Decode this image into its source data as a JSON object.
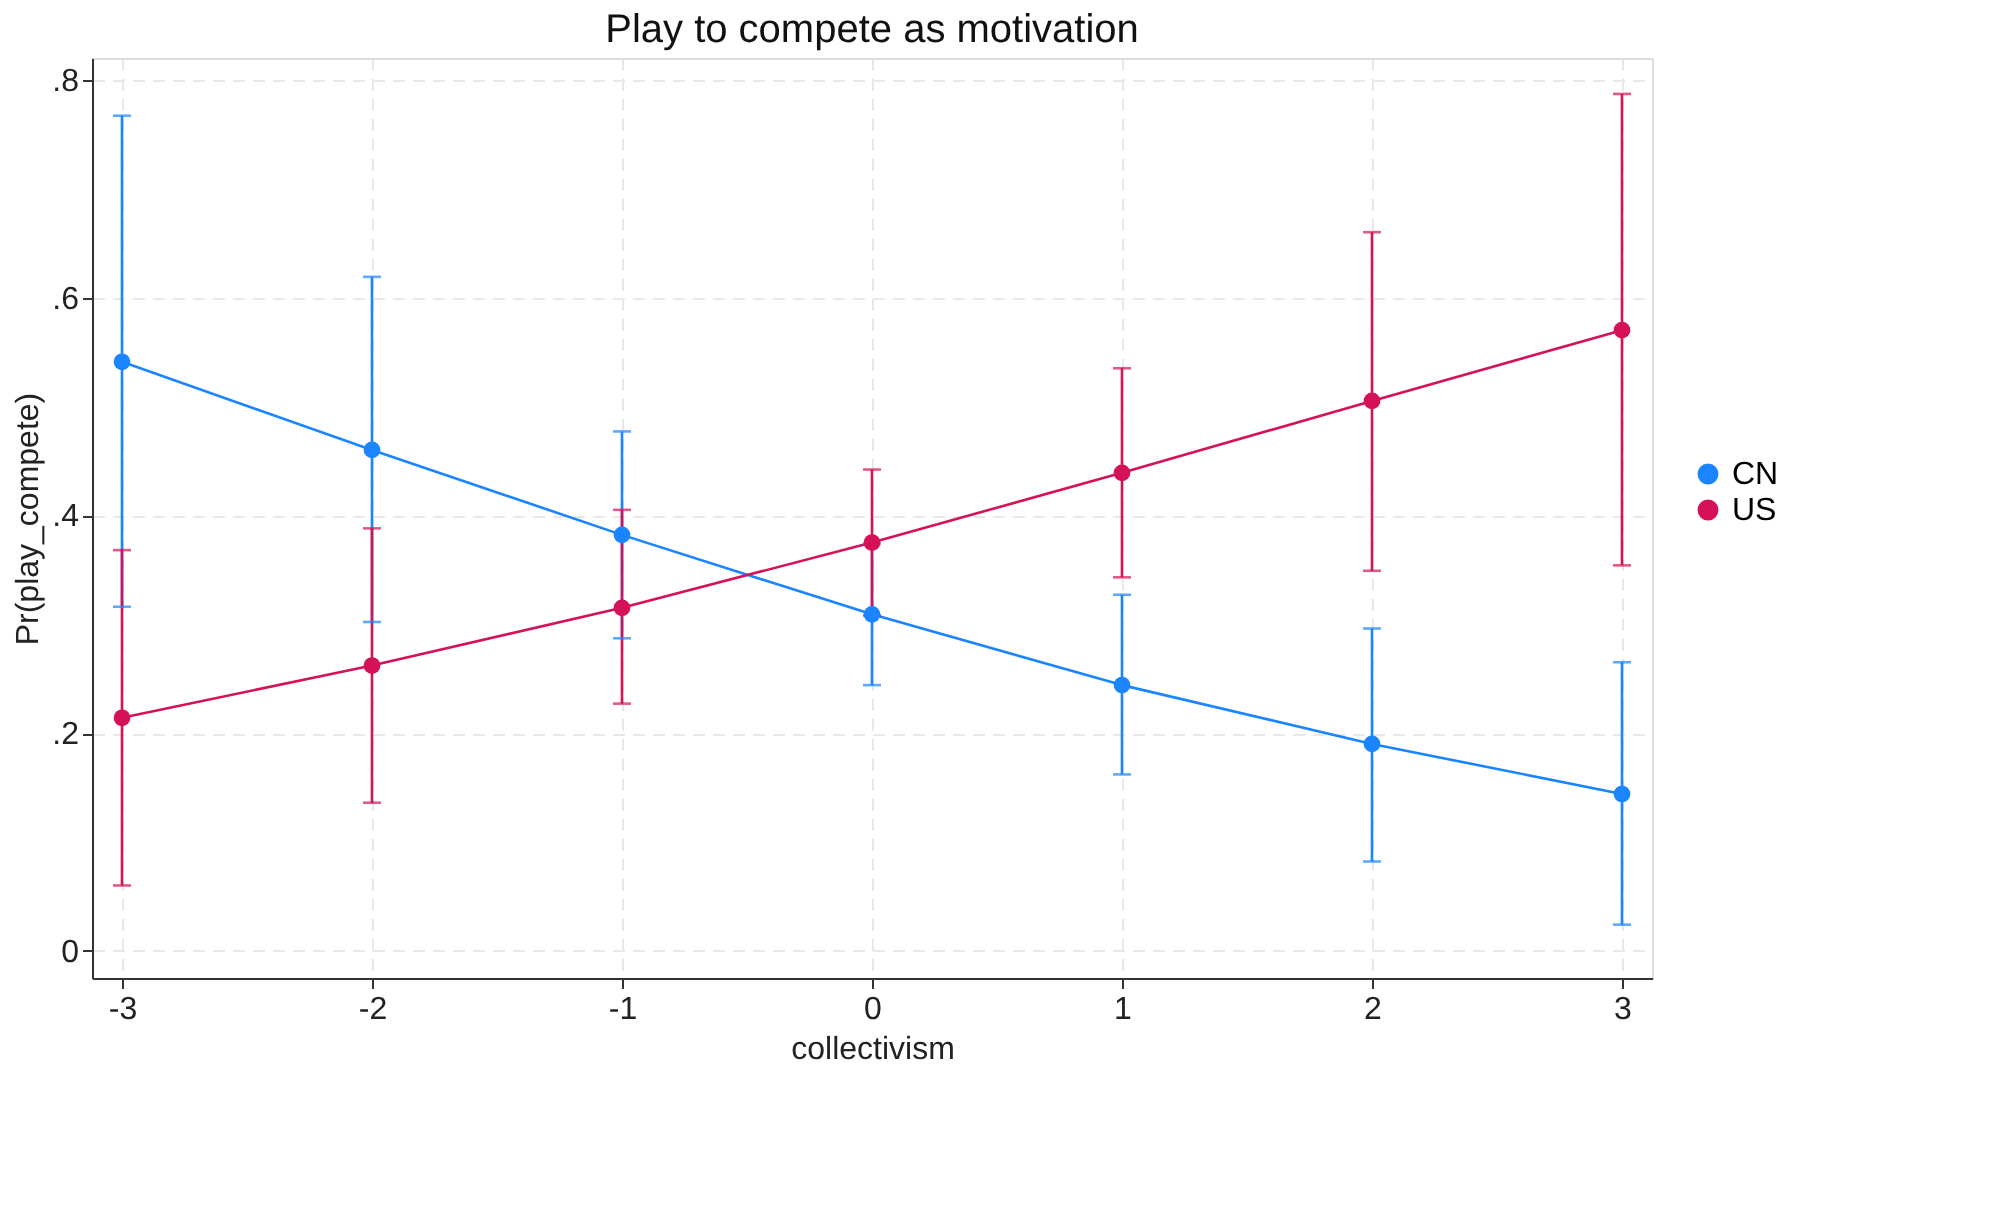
{
  "chart_data": {
    "type": "line",
    "title": "Play to compete as motivation",
    "xlabel": "collectivism",
    "ylabel": "Pr(play_compete)",
    "x": [
      -3,
      -2,
      -1,
      0,
      1,
      2,
      3
    ],
    "series": [
      {
        "name": "CN",
        "color": "#1a85ff",
        "values": [
          0.541,
          0.46,
          0.382,
          0.309,
          0.244,
          0.19,
          0.144
        ],
        "errors": [
          [
            0.316,
            0.767
          ],
          [
            0.302,
            0.619
          ],
          [
            0.287,
            0.477
          ],
          [
            0.244,
            0.374
          ],
          [
            0.162,
            0.327
          ],
          [
            0.082,
            0.296
          ],
          [
            0.024,
            0.265
          ]
        ]
      },
      {
        "name": "US",
        "color": "#d41159",
        "values": [
          0.214,
          0.262,
          0.315,
          0.375,
          0.439,
          0.505,
          0.57
        ],
        "errors": [
          [
            0.06,
            0.368
          ],
          [
            0.136,
            0.388
          ],
          [
            0.227,
            0.405
          ],
          [
            0.308,
            0.442
          ],
          [
            0.343,
            0.535
          ],
          [
            0.349,
            0.66
          ],
          [
            0.354,
            0.787
          ]
        ]
      }
    ],
    "xlim": [
      -3.12,
      3.12
    ],
    "xticks": [
      -3,
      -2,
      -1,
      0,
      1,
      2,
      3
    ],
    "ylim": [
      -0.025,
      0.82
    ],
    "yticks": [
      {
        "value": 0,
        "label": "0"
      },
      {
        "value": 0.2,
        "label": ".2"
      },
      {
        "value": 0.4,
        "label": ".4"
      },
      {
        "value": 0.6,
        "label": ".6"
      },
      {
        "value": 0.8,
        "label": ".8"
      }
    ],
    "grid": true,
    "legend": "right",
    "marker": "circle",
    "line_style": "solid"
  }
}
